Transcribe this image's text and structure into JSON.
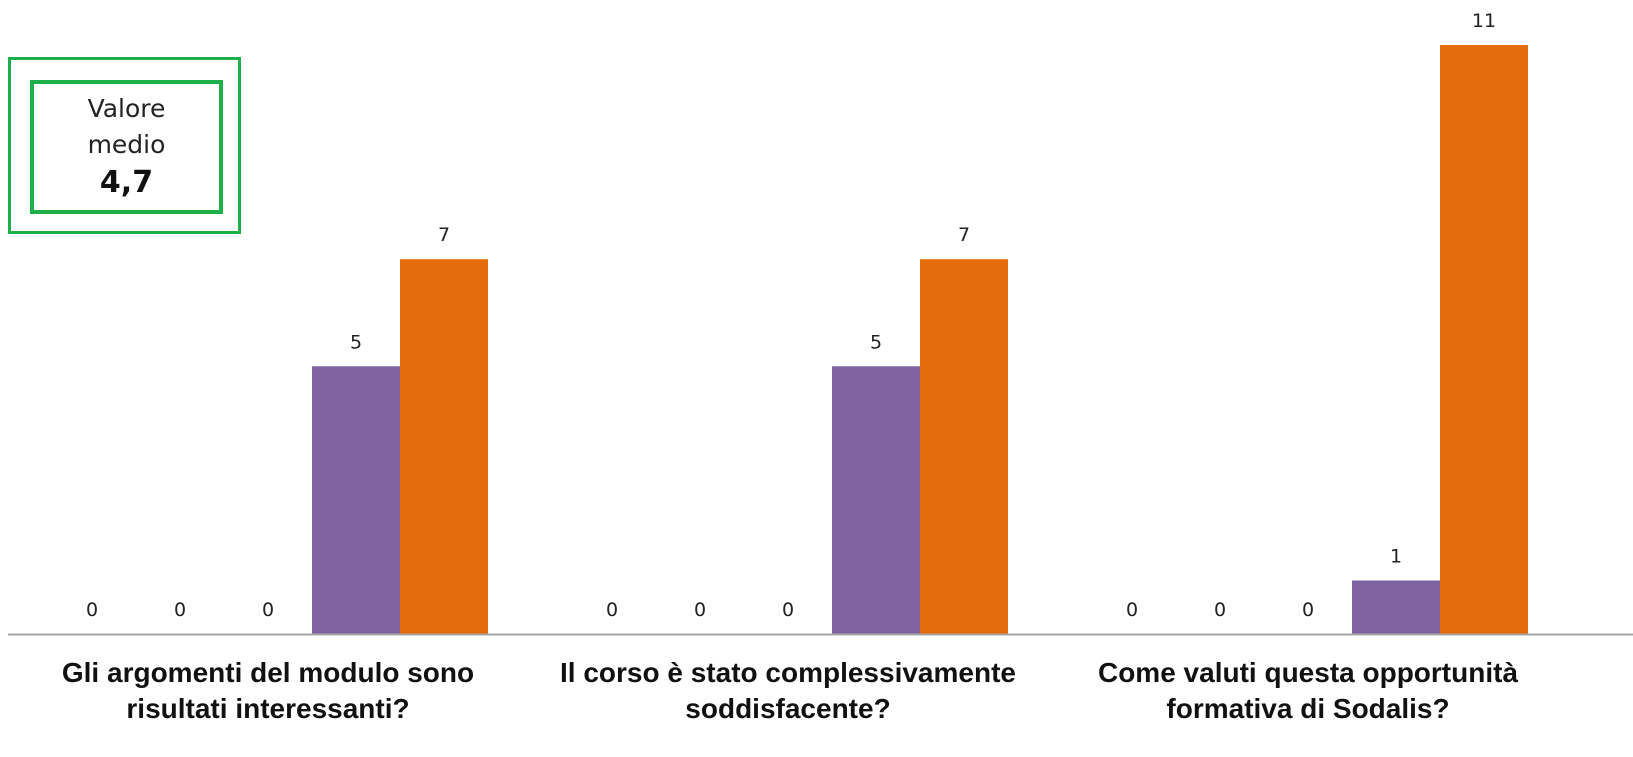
{
  "average_box": {
    "label": "Valore\nmedio",
    "value": "4,7",
    "border_color": "#1db04a"
  },
  "chart_data": {
    "type": "bar",
    "categories": [
      "Gli argomenti del modulo sono\nrisultati interessanti?",
      "Il corso è stato complessivamente\nsoddisfacente?",
      "Come valuti questa opportunità\nformativa di Sodalis?"
    ],
    "series": [
      {
        "values": [
          0,
          0,
          0
        ]
      },
      {
        "values": [
          0,
          0,
          0
        ]
      },
      {
        "values": [
          0,
          0,
          0
        ]
      },
      {
        "values": [
          5,
          5,
          1
        ],
        "color": "#8064a2"
      },
      {
        "values": [
          7,
          7,
          11
        ],
        "color": "#e46c0a"
      }
    ],
    "data_labels": true,
    "ylim": [
      0,
      11
    ],
    "legend": "none",
    "grid": false,
    "axis_color": "#a6a6a6",
    "label_color": "#222222",
    "category_label_color": "#111111"
  }
}
